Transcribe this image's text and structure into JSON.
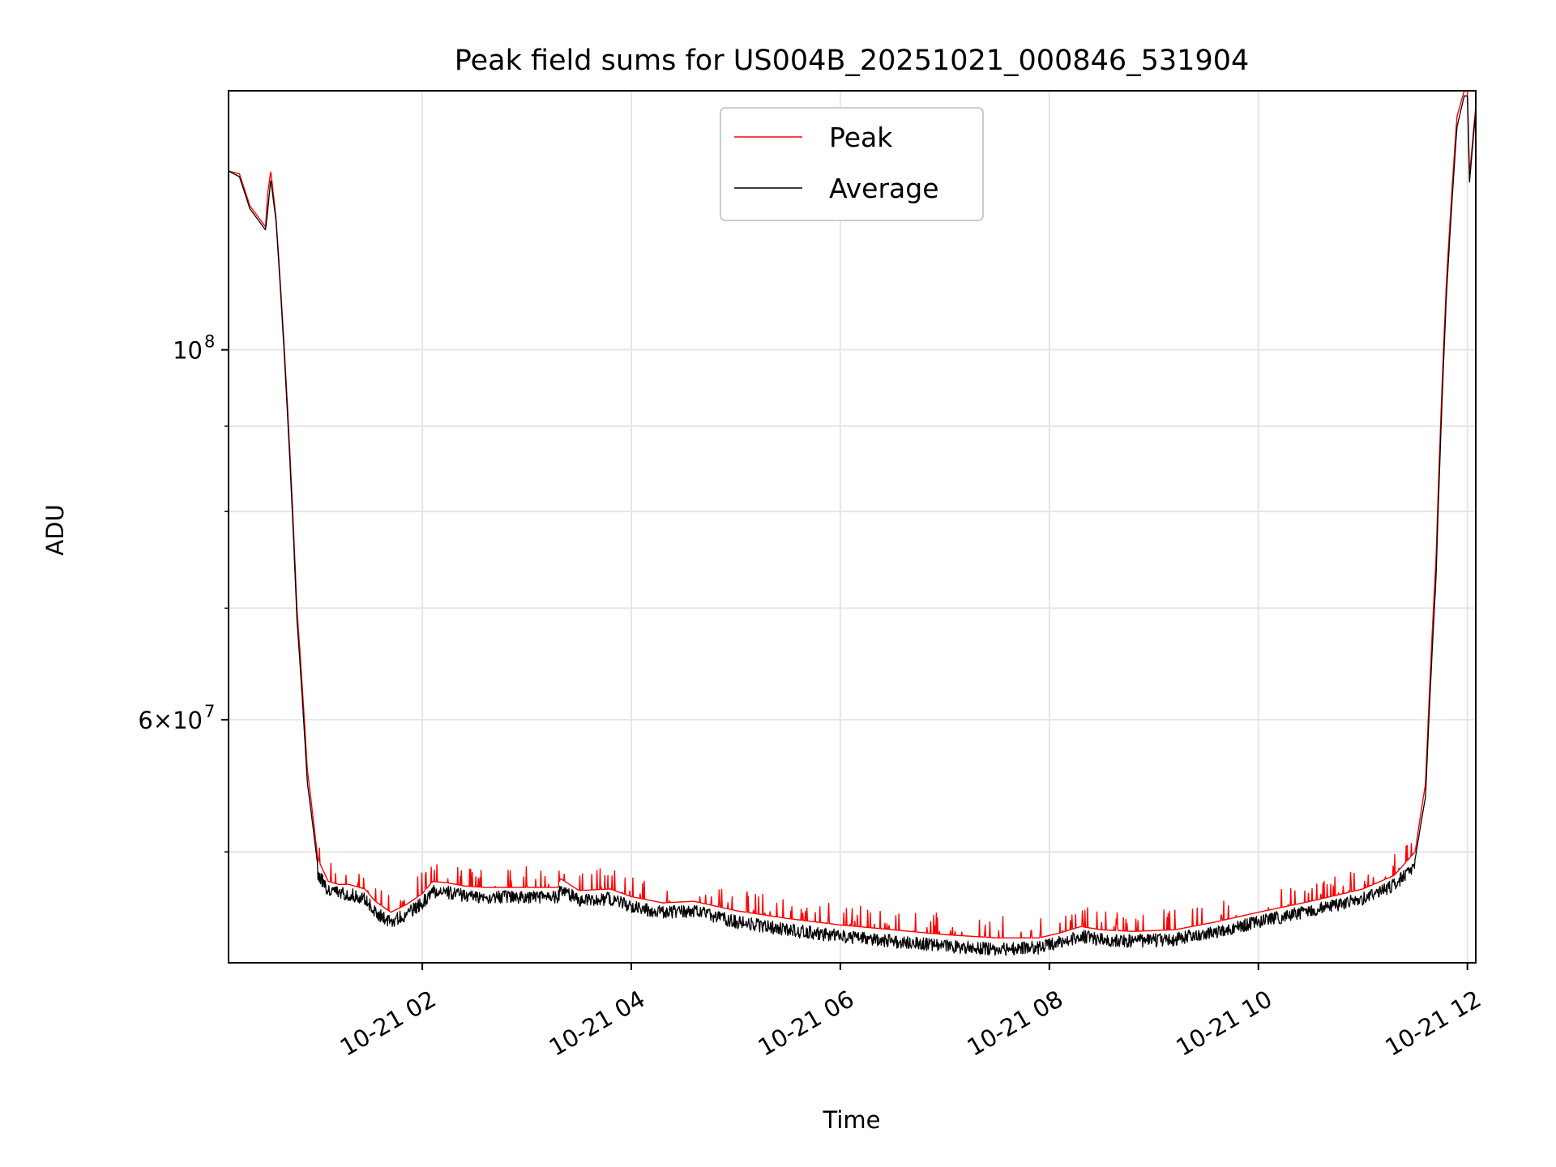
{
  "chart_data": {
    "type": "line",
    "title": "Peak field sums for US004B_20251021_000846_531904",
    "xlabel": "Time",
    "ylabel": "ADU",
    "yscale": "log",
    "ylim": [
      42900000,
      143000000
    ],
    "xlim_hours": [
      0.146,
      12.08
    ],
    "x_ticks": [
      {
        "hour": 2,
        "label": "10-21 02"
      },
      {
        "hour": 4,
        "label": "10-21 04"
      },
      {
        "hour": 6,
        "label": "10-21 06"
      },
      {
        "hour": 8,
        "label": "10-21 08"
      },
      {
        "hour": 10,
        "label": "10-21 10"
      },
      {
        "hour": 12,
        "label": "10-21 12"
      }
    ],
    "y_major_ticks": [
      {
        "value": 100000000,
        "base": "10",
        "exp": "8"
      },
      {
        "value": 60000000,
        "base": "6×10",
        "exp": "7"
      }
    ],
    "y_minor_values": [
      50000000,
      70000000,
      80000000,
      90000000
    ],
    "grid": true,
    "legend": {
      "position": "top-center",
      "entries": [
        "Peak",
        "Average"
      ]
    },
    "series": [
      {
        "name": "Peak",
        "color": "#ff0000",
        "noise_mode": "up",
        "points": [
          [
            0.146,
            128000000
          ],
          [
            0.25,
            127500000
          ],
          [
            0.35,
            122000000
          ],
          [
            0.5,
            118500000
          ],
          [
            0.52,
            124000000
          ],
          [
            0.55,
            128000000
          ],
          [
            0.6,
            120000000
          ],
          [
            0.7,
            95000000
          ],
          [
            0.8,
            70000000
          ],
          [
            0.9,
            56000000
          ],
          [
            1.0,
            49500000
          ],
          [
            1.1,
            48000000
          ],
          [
            1.2,
            47800000
          ],
          [
            1.3,
            47800000
          ],
          [
            1.45,
            47500000
          ],
          [
            1.55,
            46700000
          ],
          [
            1.7,
            46000000
          ],
          [
            1.85,
            46500000
          ],
          [
            2.0,
            47200000
          ],
          [
            2.1,
            48000000
          ],
          [
            2.25,
            47900000
          ],
          [
            2.4,
            47700000
          ],
          [
            2.6,
            47600000
          ],
          [
            3.0,
            47600000
          ],
          [
            3.3,
            47600000
          ],
          [
            3.32,
            48200000
          ],
          [
            3.5,
            47400000
          ],
          [
            3.8,
            47500000
          ],
          [
            4.0,
            47000000
          ],
          [
            4.3,
            46600000
          ],
          [
            4.6,
            46700000
          ],
          [
            5.0,
            46100000
          ],
          [
            5.5,
            45600000
          ],
          [
            6.0,
            45200000
          ],
          [
            6.5,
            44900000
          ],
          [
            7.0,
            44600000
          ],
          [
            7.5,
            44400000
          ],
          [
            7.9,
            44400000
          ],
          [
            8.1,
            44700000
          ],
          [
            8.3,
            45100000
          ],
          [
            8.5,
            44900000
          ],
          [
            8.8,
            44800000
          ],
          [
            9.2,
            44900000
          ],
          [
            9.6,
            45400000
          ],
          [
            10.0,
            46000000
          ],
          [
            10.5,
            46700000
          ],
          [
            11.0,
            47500000
          ],
          [
            11.3,
            48400000
          ],
          [
            11.5,
            50000000
          ],
          [
            11.6,
            55000000
          ],
          [
            11.7,
            75000000
          ],
          [
            11.8,
            110000000
          ],
          [
            11.9,
            138000000
          ],
          [
            11.97,
            143000000
          ],
          [
            12.0,
            143000000
          ],
          [
            12.02,
            127000000
          ],
          [
            12.08,
            140000000
          ]
        ]
      },
      {
        "name": "Average",
        "color": "#000000",
        "noise_mode": "down",
        "points": [
          [
            0.146,
            128000000
          ],
          [
            0.25,
            127000000
          ],
          [
            0.35,
            121500000
          ],
          [
            0.5,
            118000000
          ],
          [
            0.52,
            121000000
          ],
          [
            0.55,
            126500000
          ],
          [
            0.6,
            119500000
          ],
          [
            0.7,
            94000000
          ],
          [
            0.8,
            69000000
          ],
          [
            0.9,
            55000000
          ],
          [
            1.0,
            49000000
          ],
          [
            1.1,
            47800000
          ],
          [
            1.3,
            47600000
          ],
          [
            1.45,
            47300000
          ],
          [
            1.55,
            46400000
          ],
          [
            1.7,
            45800000
          ],
          [
            1.85,
            46300000
          ],
          [
            2.0,
            47000000
          ],
          [
            2.1,
            47800000
          ],
          [
            2.25,
            47700000
          ],
          [
            2.4,
            47500000
          ],
          [
            2.6,
            47400000
          ],
          [
            3.0,
            47400000
          ],
          [
            3.3,
            47400000
          ],
          [
            3.32,
            47900000
          ],
          [
            3.5,
            47200000
          ],
          [
            3.8,
            47300000
          ],
          [
            4.0,
            46800000
          ],
          [
            4.3,
            46400000
          ],
          [
            4.6,
            46500000
          ],
          [
            5.0,
            45800000
          ],
          [
            5.5,
            45300000
          ],
          [
            6.0,
            44900000
          ],
          [
            6.5,
            44600000
          ],
          [
            7.0,
            44300000
          ],
          [
            7.5,
            44100000
          ],
          [
            7.9,
            44200000
          ],
          [
            8.1,
            44500000
          ],
          [
            8.3,
            44900000
          ],
          [
            8.5,
            44700000
          ],
          [
            8.8,
            44600000
          ],
          [
            9.2,
            44700000
          ],
          [
            9.6,
            45200000
          ],
          [
            10.0,
            45800000
          ],
          [
            10.5,
            46500000
          ],
          [
            11.0,
            47300000
          ],
          [
            11.3,
            48200000
          ],
          [
            11.5,
            49500000
          ],
          [
            11.6,
            54000000
          ],
          [
            11.7,
            73000000
          ],
          [
            11.8,
            108000000
          ],
          [
            11.9,
            136000000
          ],
          [
            11.97,
            142000000
          ],
          [
            12.0,
            142000000
          ],
          [
            12.02,
            126000000
          ],
          [
            12.08,
            139000000
          ]
        ]
      }
    ]
  }
}
